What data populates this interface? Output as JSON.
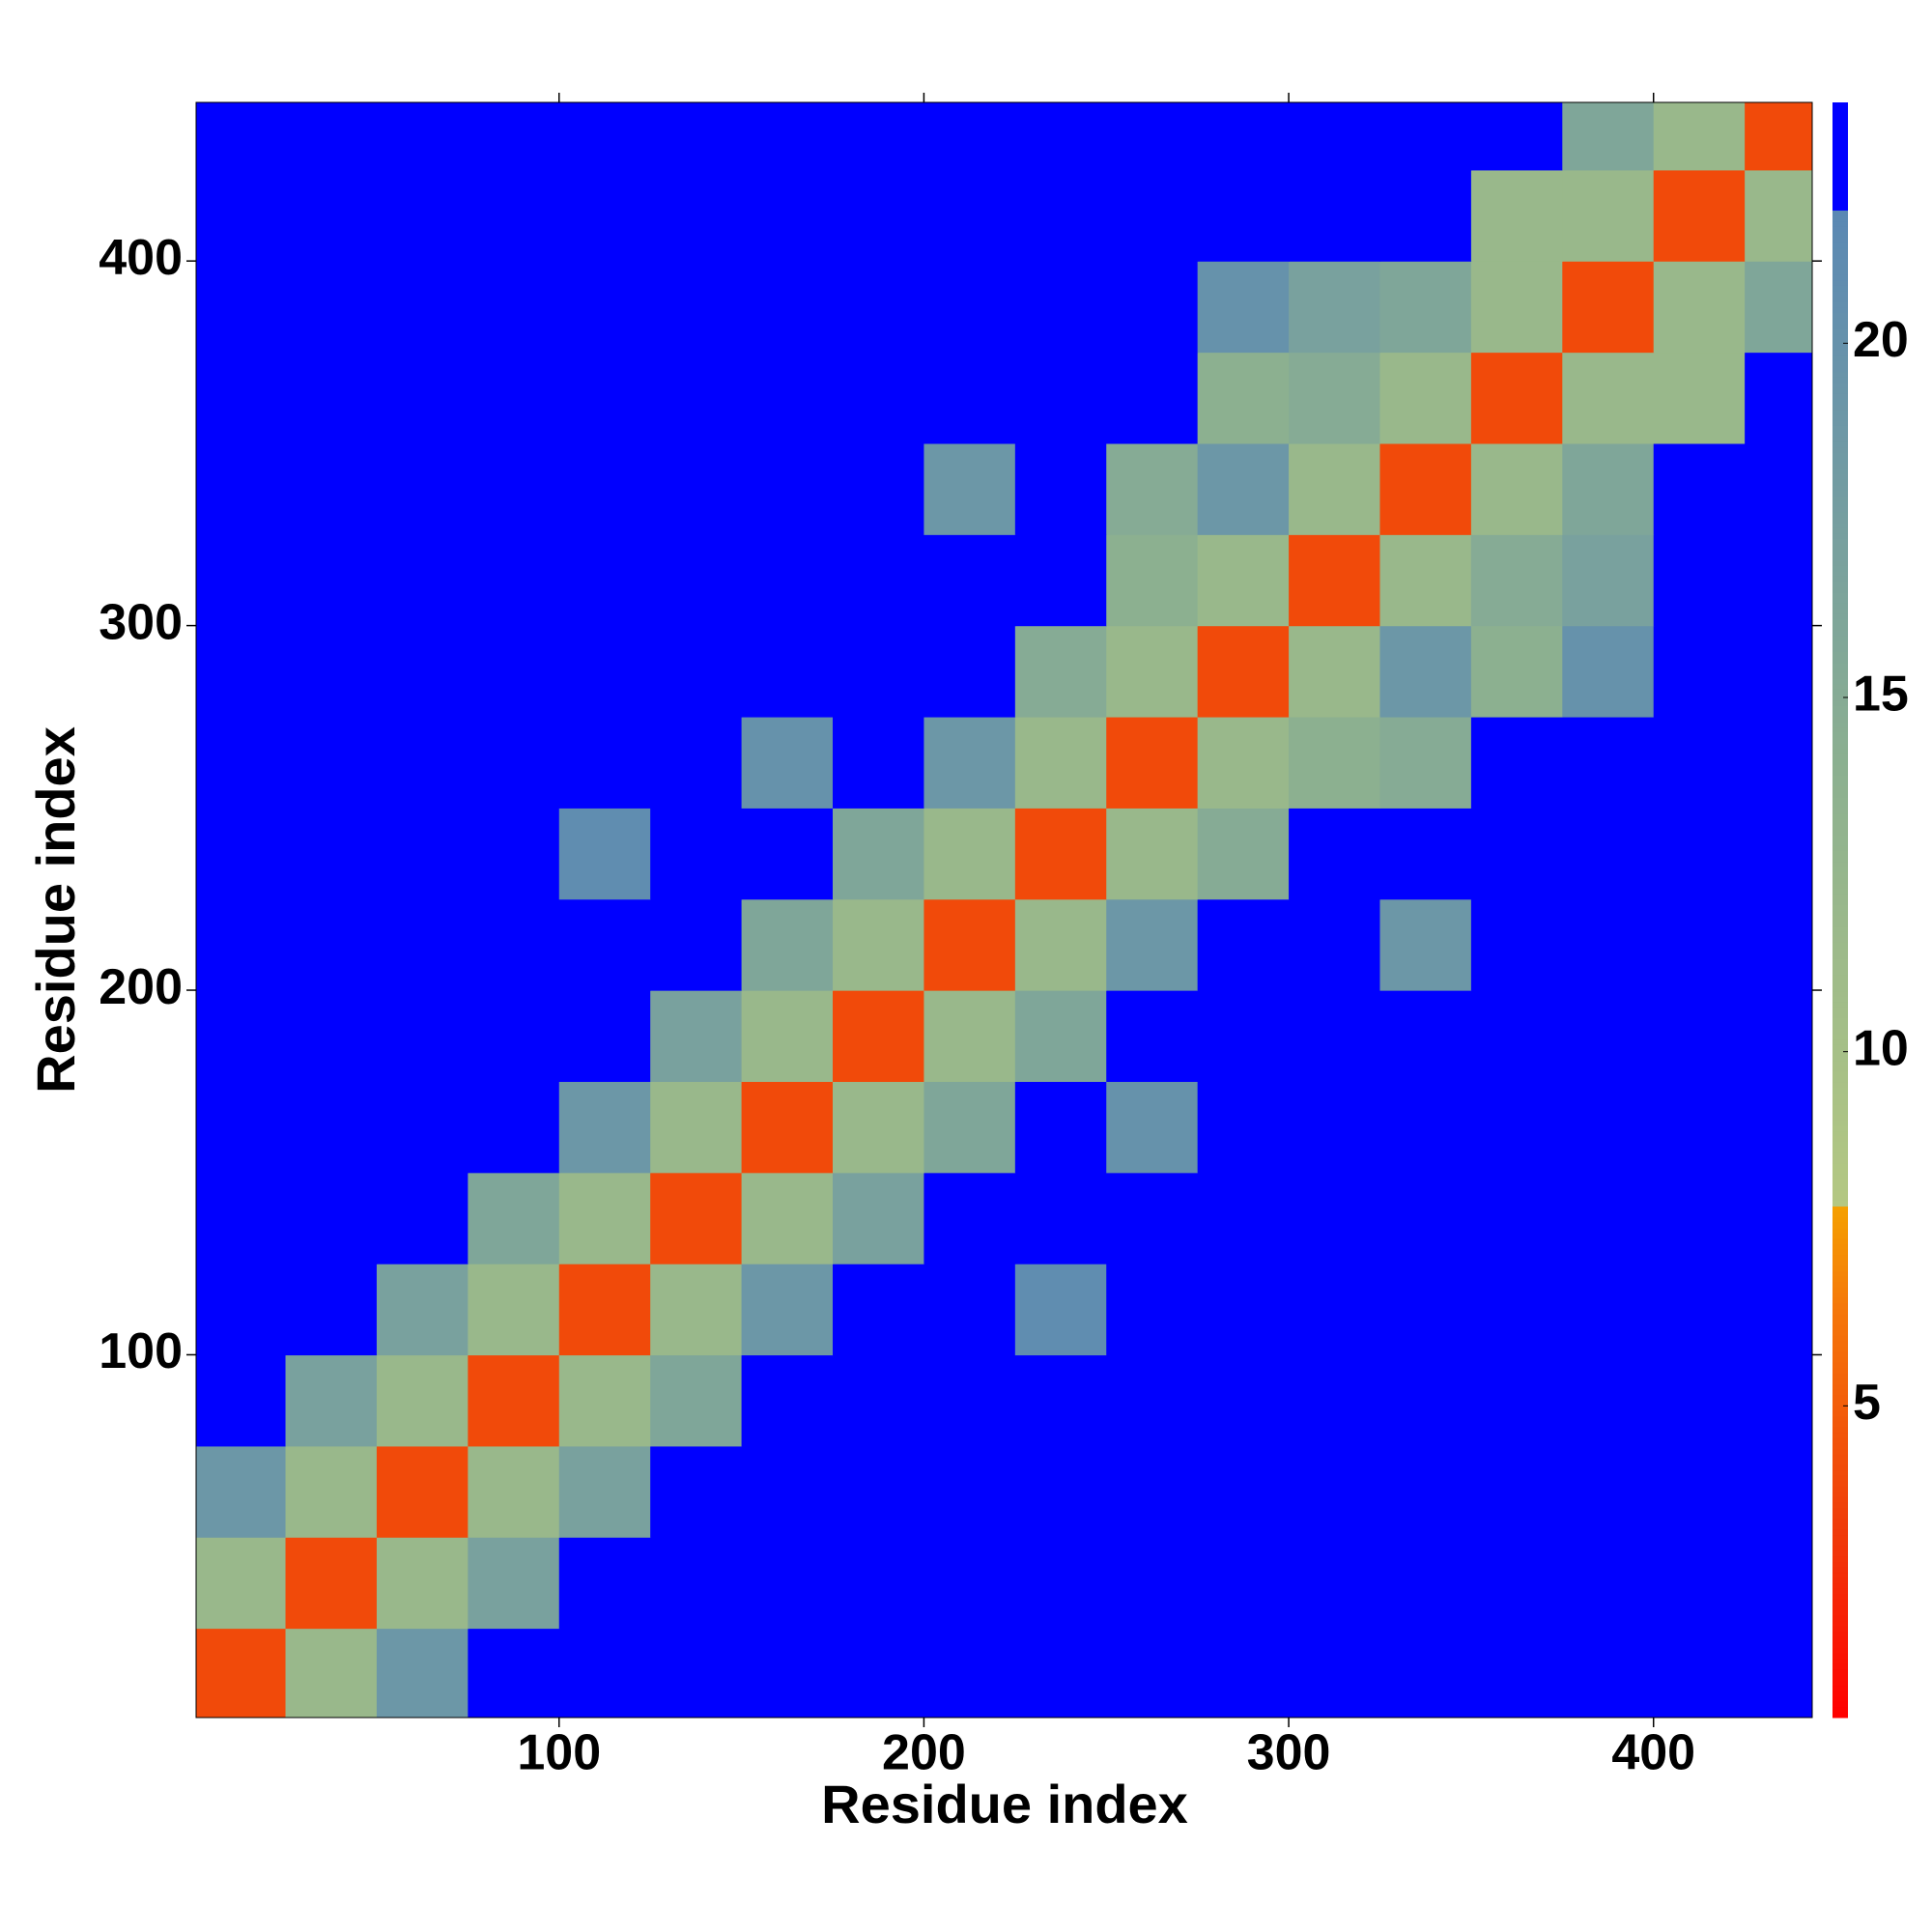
{
  "chart_data": {
    "type": "heatmap",
    "x_label": "Residue index",
    "y_label": "Residue index",
    "x": [
      12.5,
      37.5,
      62.5,
      87.5,
      112.5,
      137.5,
      162.5,
      187.5,
      212.5,
      237.5,
      262.5,
      287.5,
      312.5,
      337.5,
      362.5,
      387.5,
      412.5,
      437.5
    ],
    "y": [
      12.5,
      37.5,
      62.5,
      87.5,
      112.5,
      137.5,
      162.5,
      187.5,
      212.5,
      237.5,
      262.5,
      287.5,
      312.5,
      337.5,
      362.5,
      387.5,
      412.5,
      437.5
    ],
    "z": [
      [
        4,
        12,
        19,
        23,
        23,
        23,
        23,
        23,
        23,
        23,
        23,
        23,
        23,
        23,
        23,
        23,
        23,
        23
      ],
      [
        12,
        4,
        12,
        17,
        23,
        23,
        23,
        23,
        23,
        23,
        23,
        23,
        23,
        23,
        23,
        23,
        23,
        23
      ],
      [
        19,
        12,
        4,
        12,
        17,
        23,
        23,
        23,
        23,
        23,
        23,
        23,
        23,
        23,
        23,
        23,
        23,
        23
      ],
      [
        23,
        17,
        12,
        4,
        12,
        16,
        23,
        23,
        23,
        23,
        23,
        23,
        23,
        23,
        23,
        23,
        23,
        23
      ],
      [
        23,
        23,
        17,
        12,
        4,
        12,
        19,
        23,
        23,
        21,
        23,
        23,
        23,
        23,
        23,
        23,
        23,
        23
      ],
      [
        23,
        23,
        23,
        16,
        12,
        4,
        12,
        17,
        23,
        23,
        23,
        23,
        23,
        23,
        23,
        23,
        23,
        23
      ],
      [
        23,
        23,
        23,
        23,
        19,
        12,
        4,
        12,
        16,
        23,
        20,
        23,
        23,
        23,
        23,
        23,
        23,
        23
      ],
      [
        23,
        23,
        23,
        23,
        23,
        17,
        12,
        4,
        12,
        16,
        23,
        23,
        23,
        23,
        23,
        23,
        23,
        23
      ],
      [
        23,
        23,
        23,
        23,
        23,
        23,
        16,
        12,
        4,
        12,
        19,
        23,
        23,
        19,
        23,
        23,
        23,
        23
      ],
      [
        23,
        23,
        23,
        23,
        21,
        23,
        23,
        16,
        12,
        4,
        12,
        15,
        23,
        23,
        23,
        23,
        23,
        23
      ],
      [
        23,
        23,
        23,
        23,
        23,
        23,
        20,
        23,
        19,
        12,
        4,
        12,
        14,
        15,
        23,
        23,
        23,
        23
      ],
      [
        23,
        23,
        23,
        23,
        23,
        23,
        23,
        23,
        23,
        15,
        12,
        4,
        12,
        19,
        14,
        20,
        23,
        23
      ],
      [
        23,
        23,
        23,
        23,
        23,
        23,
        23,
        23,
        23,
        23,
        14,
        12,
        4,
        12,
        15,
        17,
        23,
        23
      ],
      [
        23,
        23,
        23,
        23,
        23,
        23,
        23,
        23,
        19,
        23,
        15,
        19,
        12,
        4,
        12,
        16,
        23,
        23
      ],
      [
        23,
        23,
        23,
        23,
        23,
        23,
        23,
        23,
        23,
        23,
        23,
        14,
        15,
        12,
        4,
        12,
        12,
        23
      ],
      [
        23,
        23,
        23,
        23,
        23,
        23,
        23,
        23,
        23,
        23,
        23,
        20,
        17,
        16,
        12,
        4,
        12,
        16
      ],
      [
        23,
        23,
        23,
        23,
        23,
        23,
        23,
        23,
        23,
        23,
        23,
        23,
        23,
        23,
        12,
        12,
        4,
        12
      ],
      [
        23,
        23,
        23,
        23,
        23,
        23,
        23,
        23,
        23,
        23,
        23,
        23,
        23,
        23,
        23,
        16,
        12,
        4
      ]
    ],
    "xlim": [
      0.5,
      443.5
    ],
    "ylim": [
      0.5,
      443.5
    ],
    "xticks": [
      100,
      200,
      300,
      400
    ],
    "yticks": [
      100,
      200,
      300,
      400
    ],
    "zlim": [
      0.6,
      23.4
    ],
    "zticks": [
      5,
      10,
      15,
      20
    ],
    "colorscale": [
      [
        0.6,
        "#ff0000"
      ],
      [
        3.3,
        "#f03c0a"
      ],
      [
        6.4,
        "#f5780a"
      ],
      [
        7.8,
        "#f5a000"
      ],
      [
        7.8,
        "#b4c882"
      ],
      [
        14,
        "#8cb090"
      ],
      [
        21.9,
        "#5a88b4"
      ],
      [
        21.9,
        "#0000ff"
      ],
      [
        23.4,
        "#0000ff"
      ]
    ]
  }
}
